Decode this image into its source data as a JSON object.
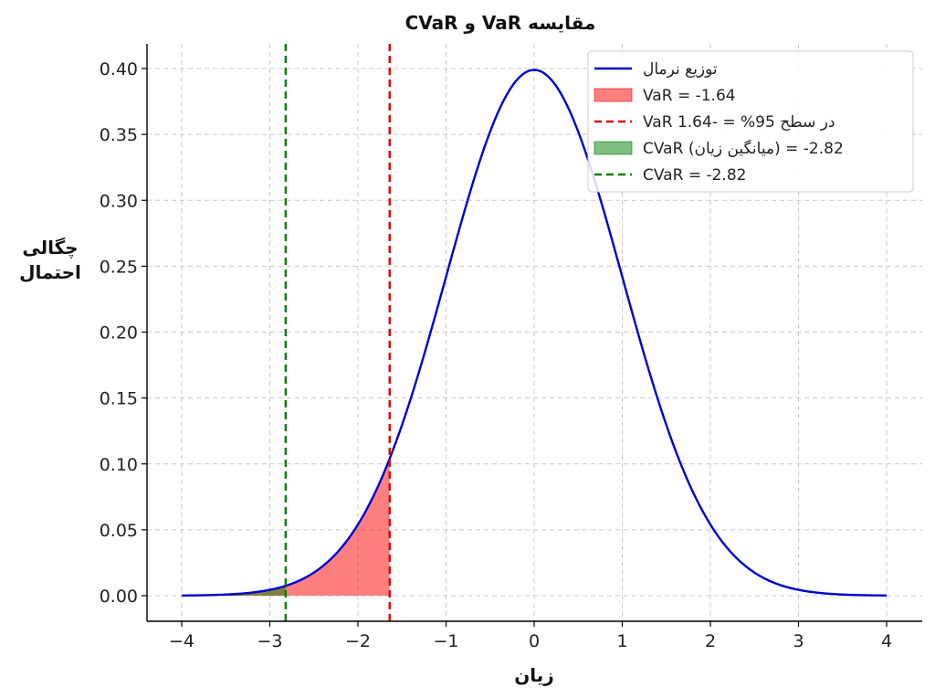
{
  "chart_data": {
    "type": "line",
    "title": "مقایسه VaR و CVaR",
    "xlabel": "زیان",
    "ylabel": [
      "چگالی",
      "احتمال"
    ],
    "xlim": [
      -4.2,
      4.4
    ],
    "ylim": [
      -0.02,
      0.42
    ],
    "x_ticks": [
      -4,
      -3,
      -2,
      -1,
      0,
      1,
      2,
      3,
      4
    ],
    "x_tick_labels": [
      "−4",
      "−3",
      "−2",
      "−1",
      "0",
      "1",
      "2",
      "3",
      "4"
    ],
    "y_ticks": [
      0.0,
      0.05,
      0.1,
      0.15,
      0.2,
      0.25,
      0.3,
      0.35,
      0.4
    ],
    "y_tick_labels": [
      "0.00",
      "0.05",
      "0.10",
      "0.15",
      "0.20",
      "0.25",
      "0.30",
      "0.35",
      "0.40"
    ],
    "grid": true,
    "legend_position": "top-right",
    "series": [
      {
        "name": "توزیع نرمال",
        "kind": "line",
        "color": "#0000cc",
        "x": [
          -4.0,
          -3.5,
          -3.0,
          -2.8,
          -2.5,
          -2.0,
          -1.64,
          -1.5,
          -1.0,
          -0.5,
          0.0,
          0.5,
          1.0,
          1.5,
          2.0,
          2.5,
          3.0,
          3.5,
          4.0
        ],
        "y": [
          0.0001,
          0.0009,
          0.0044,
          0.0079,
          0.0175,
          0.054,
          0.104,
          0.1295,
          0.242,
          0.3521,
          0.3989,
          0.3521,
          0.242,
          0.1295,
          0.054,
          0.0175,
          0.0044,
          0.0009,
          0.0001
        ]
      }
    ],
    "shaded_regions": [
      {
        "name": "VaR = -1.64",
        "from": -4.0,
        "to": -1.64,
        "color": "#ff0000",
        "opacity": 0.5
      },
      {
        "name": "CVaR (میانگین زیان) = -2.82",
        "from": -4.0,
        "to": -2.82,
        "color": "#008000",
        "opacity": 0.5
      }
    ],
    "vertical_lines": [
      {
        "name": "VaR در سطح 95% = -1.64",
        "x": -1.64,
        "color": "#dd0000"
      },
      {
        "name": "CVaR = -2.82",
        "x": -2.82,
        "color": "#008000"
      }
    ],
    "legend": [
      {
        "label": "توزیع نرمال",
        "type": "line",
        "color": "#0000cc"
      },
      {
        "label": "VaR = -1.64",
        "type": "patch",
        "color": "#ff0000"
      },
      {
        "label": "VaR در سطح 95% = -1.64",
        "type": "dashed",
        "color": "#dd0000"
      },
      {
        "label": "CVaR (میانگین زیان) = -2.82",
        "type": "patch",
        "color": "#008000"
      },
      {
        "label": "CVaR = -2.82",
        "type": "dashed",
        "color": "#008000"
      }
    ]
  }
}
